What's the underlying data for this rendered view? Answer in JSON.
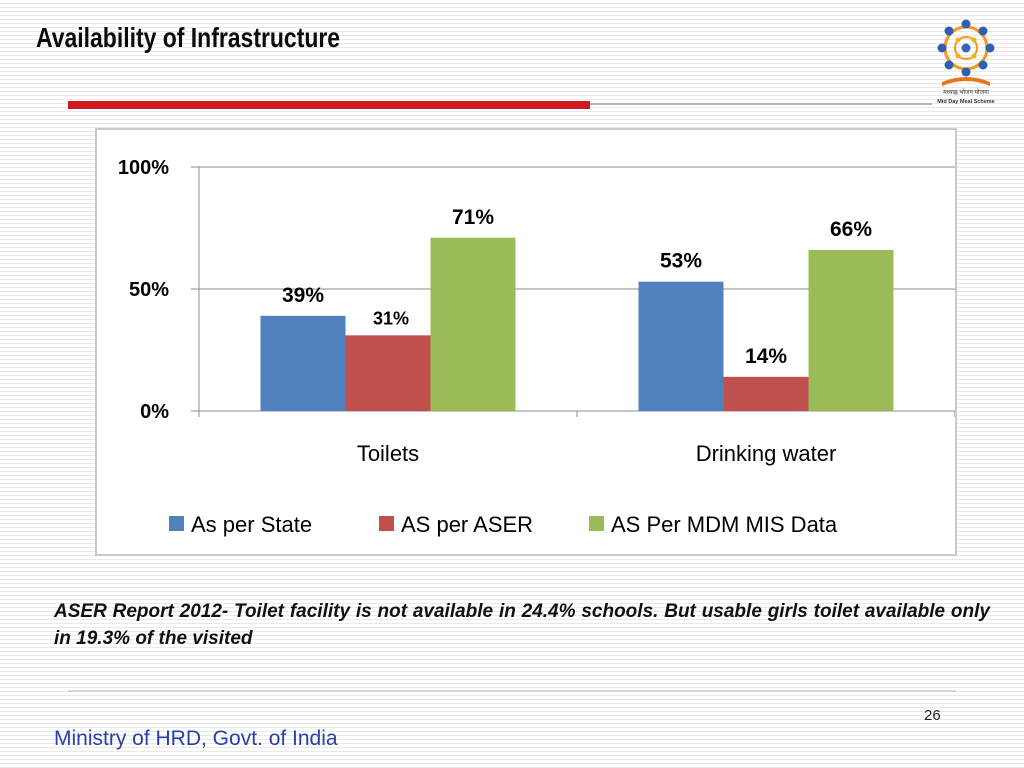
{
  "slide": {
    "title": "Availability of Infrastructure",
    "body_text": "ASER Report 2012- Toilet facility is not available in 24.4% schools. But usable girls toilet available only in 19.3% of the visited",
    "page_number": "26",
    "footer": "Ministry of HRD, Govt. of India",
    "logo_text_hindi": "मध्याह्न भोजन योजना",
    "logo_text_english": "Mid Day Meal Scheme"
  },
  "chart_data": {
    "type": "bar",
    "title": "",
    "xlabel": "",
    "ylabel": "",
    "categories": [
      "Toilets",
      "Drinking water"
    ],
    "series": [
      {
        "name": "As per State",
        "values": [
          39,
          53
        ],
        "labels": [
          "39%",
          "53%"
        ],
        "color": "#4f81bd"
      },
      {
        "name": "AS per ASER",
        "values": [
          31,
          14
        ],
        "labels": [
          "31%",
          "14%"
        ],
        "color": "#c0504d"
      },
      {
        "name": "AS Per MDM MIS Data",
        "values": [
          71,
          66
        ],
        "labels": [
          "71%",
          "66%"
        ],
        "color": "#9bbb59"
      }
    ],
    "ylim": [
      0,
      100
    ],
    "yticks": [
      0,
      50,
      100
    ],
    "ytick_labels": [
      "0%",
      "50%",
      "100%"
    ],
    "grid": true,
    "legend_position": "bottom"
  }
}
